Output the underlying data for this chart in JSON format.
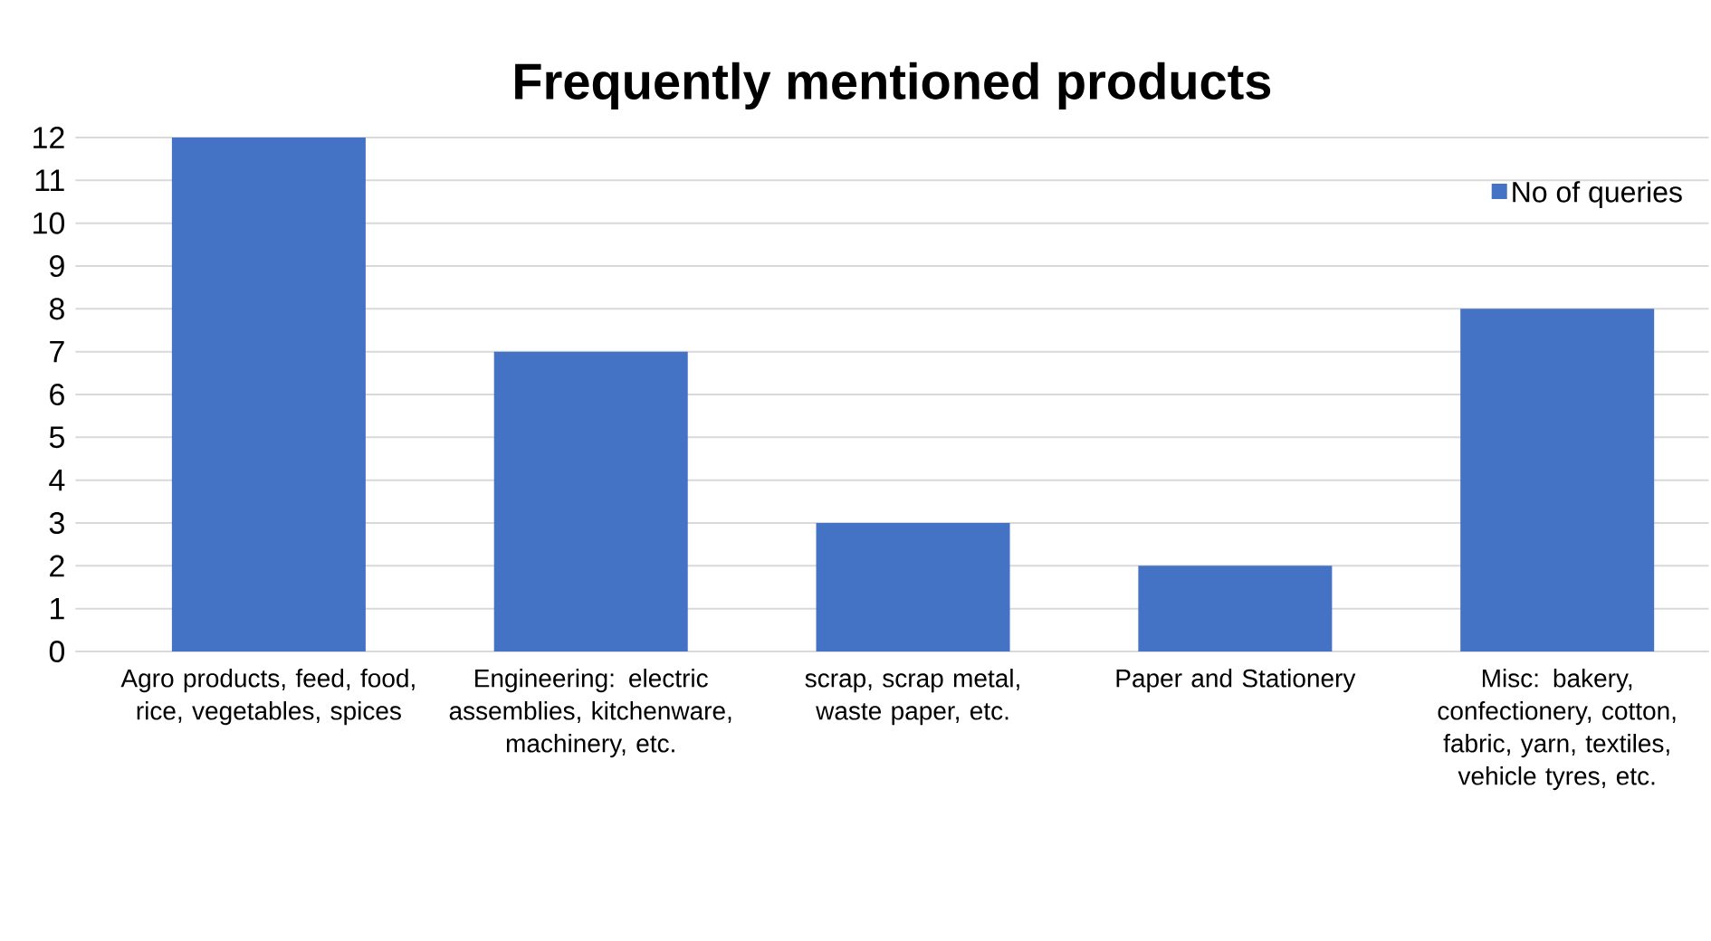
{
  "chart_data": {
    "type": "bar",
    "title": "Frequently mentioned products",
    "categories": [
      "Agro products, feed, food, rice, vegetables, spices",
      "Engineering: electric assemblies, kitchenware, machinery, etc.",
      "scrap, scrap metal, waste paper, etc.",
      "Paper and Stationery",
      "Misc: bakery, confectionery, cotton, fabric, yarn, textiles, vehicle tyres, etc."
    ],
    "series": [
      {
        "name": "No of queries",
        "color": "#4472c4",
        "values": [
          12,
          7,
          3,
          2,
          8
        ]
      }
    ],
    "ylim": [
      0,
      12
    ],
    "yticks": [
      0,
      1,
      2,
      3,
      4,
      5,
      6,
      7,
      8,
      9,
      10,
      11,
      12
    ],
    "grid": "y",
    "legend": "top right"
  }
}
